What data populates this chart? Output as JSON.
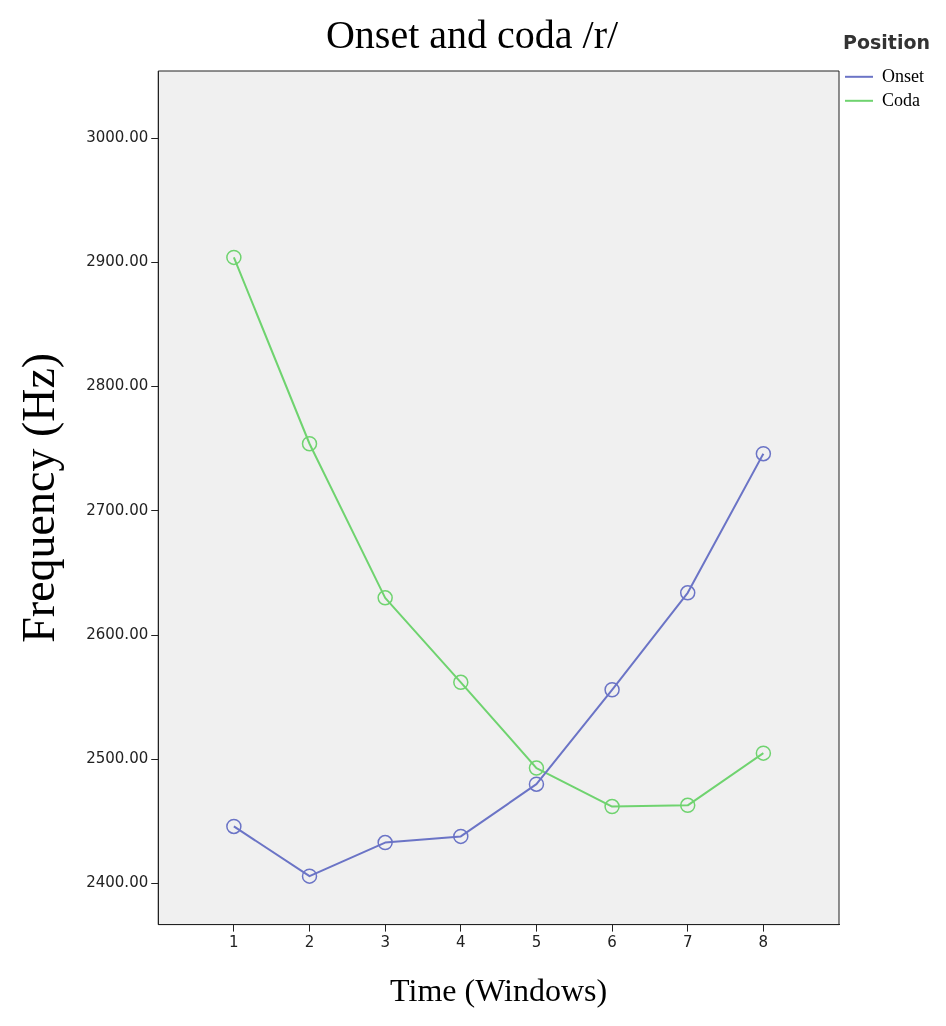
{
  "chart_data": {
    "type": "line",
    "title": "Onset and coda /r/",
    "xlabel": "Time (Windows)",
    "ylabel": "Frequency (Hz)",
    "legend_title": "Position",
    "x": [
      1,
      2,
      3,
      4,
      5,
      6,
      7,
      8
    ],
    "series": [
      {
        "name": "Onset",
        "color": "#6b74c6",
        "values": [
          2446,
          2406,
          2433,
          2438,
          2480,
          2556,
          2634,
          2746
        ]
      },
      {
        "name": "Coda",
        "color": "#6fd36f",
        "values": [
          2904,
          2754,
          2630,
          2562,
          2493,
          2462,
          2463,
          2505
        ]
      }
    ],
    "xlim": [
      0,
      9
    ],
    "xticks": [
      1,
      2,
      3,
      4,
      5,
      6,
      7,
      8
    ],
    "ylim": [
      2367,
      3054
    ],
    "yticks": [
      {
        "value": 2400,
        "label": "2400.00"
      },
      {
        "value": 2500,
        "label": "2500.00"
      },
      {
        "value": 2600,
        "label": "2600.00"
      },
      {
        "value": 2700,
        "label": "2700.00"
      },
      {
        "value": 2800,
        "label": "2800.00"
      },
      {
        "value": 2900,
        "label": "2900.00"
      },
      {
        "value": 3000,
        "label": "3000.00"
      }
    ],
    "grid": false,
    "legend": "right",
    "marker": "circle",
    "line_style": "solid"
  }
}
